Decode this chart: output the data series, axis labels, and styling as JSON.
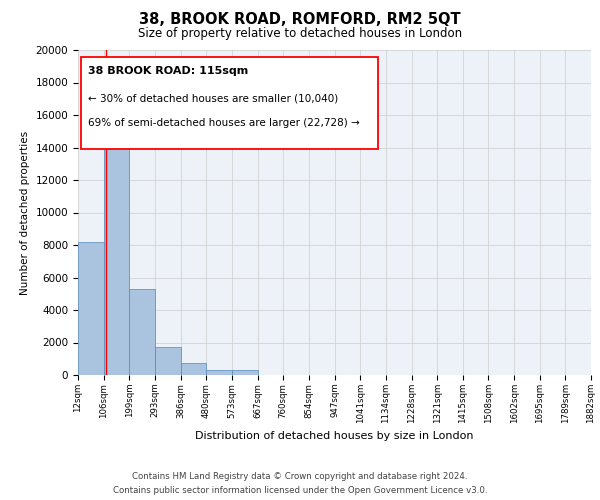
{
  "title": "38, BROOK ROAD, ROMFORD, RM2 5QT",
  "subtitle": "Size of property relative to detached houses in London",
  "xlabel": "Distribution of detached houses by size in London",
  "ylabel": "Number of detached properties",
  "bar_values": [
    8200,
    16700,
    5300,
    1750,
    750,
    280,
    280,
    0,
    0,
    0,
    0,
    0,
    0,
    0,
    0,
    0,
    0,
    0,
    0,
    0
  ],
  "bin_labels": [
    "12sqm",
    "106sqm",
    "199sqm",
    "293sqm",
    "386sqm",
    "480sqm",
    "573sqm",
    "667sqm",
    "760sqm",
    "854sqm",
    "947sqm",
    "1041sqm",
    "1134sqm",
    "1228sqm",
    "1321sqm",
    "1415sqm",
    "1508sqm",
    "1602sqm",
    "1695sqm",
    "1789sqm",
    "1882sqm"
  ],
  "bar_color": "#aac4e0",
  "bar_edge_color": "#5588bb",
  "annotation_line1": "38 BROOK ROAD: 115sqm",
  "annotation_line2": "← 30% of detached houses are smaller (10,040)",
  "annotation_line3": "69% of semi-detached houses are larger (22,728) →",
  "red_line_x": 115,
  "property_size": 115,
  "ylim": [
    0,
    20000
  ],
  "yticks": [
    0,
    2000,
    4000,
    6000,
    8000,
    10000,
    12000,
    14000,
    16000,
    18000,
    20000
  ],
  "grid_color": "#cccccc",
  "background_color": "#edf2f9",
  "footer_line1": "Contains HM Land Registry data © Crown copyright and database right 2024.",
  "footer_line2": "Contains public sector information licensed under the Open Government Licence v3.0.",
  "bin_edges": [
    12,
    106,
    199,
    293,
    386,
    480,
    573,
    667,
    760,
    854,
    947,
    1041,
    1134,
    1228,
    1321,
    1415,
    1508,
    1602,
    1695,
    1789,
    1882
  ]
}
